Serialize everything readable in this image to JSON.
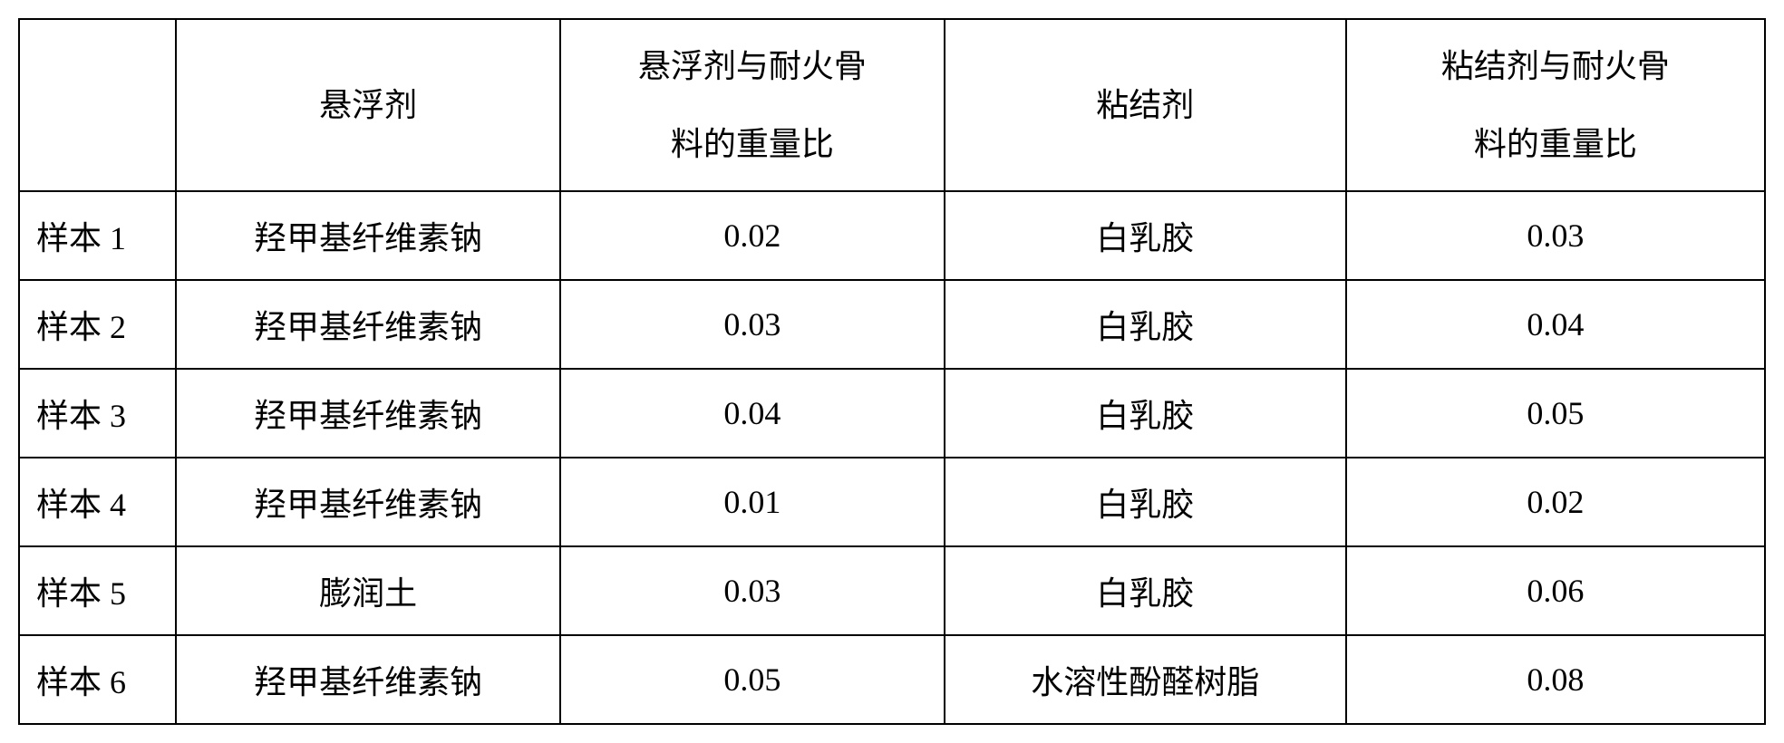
{
  "table": {
    "columns": [
      {
        "header": "",
        "align": "left"
      },
      {
        "header": "悬浮剂",
        "align": "center"
      },
      {
        "header_line1": "悬浮剂与耐火骨",
        "header_line2": "料的重量比",
        "align": "center"
      },
      {
        "header": "粘结剂",
        "align": "center"
      },
      {
        "header_line1": "粘结剂与耐火骨",
        "header_line2": "料的重量比",
        "align": "center"
      }
    ],
    "rows": [
      {
        "c0": "样本 1",
        "c1": "羟甲基纤维素钠",
        "c2": "0.02",
        "c3": "白乳胶",
        "c4": "0.03"
      },
      {
        "c0": "样本 2",
        "c1": "羟甲基纤维素钠",
        "c2": "0.03",
        "c3": "白乳胶",
        "c4": "0.04"
      },
      {
        "c0": "样本 3",
        "c1": "羟甲基纤维素钠",
        "c2": "0.04",
        "c3": "白乳胶",
        "c4": "0.05"
      },
      {
        "c0": "样本 4",
        "c1": "羟甲基纤维素钠",
        "c2": "0.01",
        "c3": "白乳胶",
        "c4": "0.02"
      },
      {
        "c0": "样本 5",
        "c1": "膨润土",
        "c2": "0.03",
        "c3": "白乳胶",
        "c4": "0.06"
      },
      {
        "c0": "样本 6",
        "c1": "羟甲基纤维素钠",
        "c2": "0.05",
        "c3": "水溶性酚醛树脂",
        "c4": "0.08"
      }
    ],
    "styling": {
      "border_color": "#000000",
      "border_width": 2,
      "background_color": "#ffffff",
      "text_color": "#000000",
      "font_size": 36,
      "font_family": "SimSun",
      "header_row_height": 190,
      "data_row_height": 98,
      "col_widths_pct": [
        9,
        22,
        22,
        23,
        24
      ]
    }
  }
}
